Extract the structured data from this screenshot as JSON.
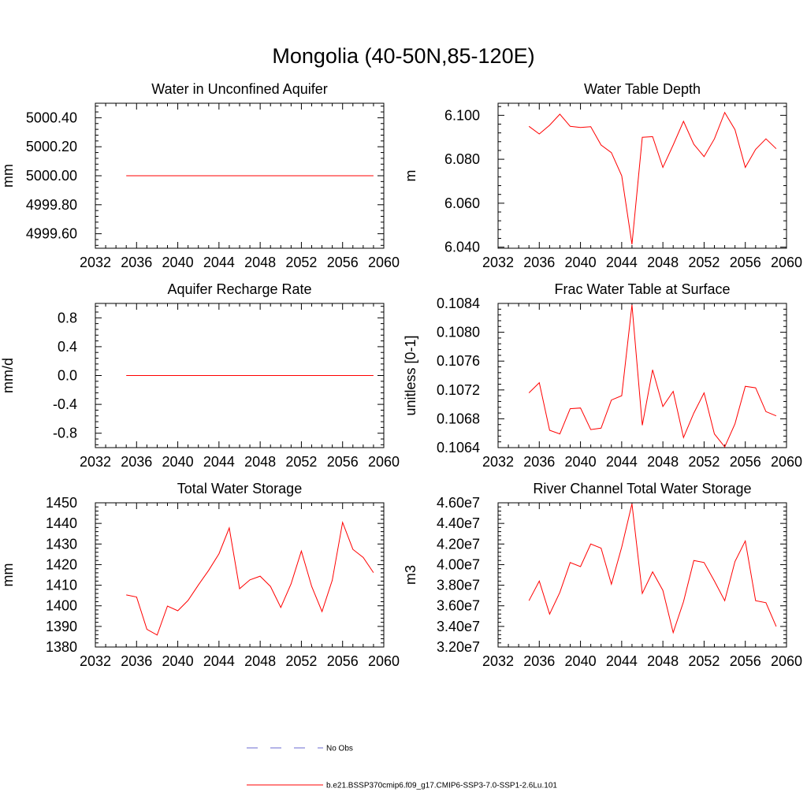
{
  "title": "Mongolia (40-50N,85-120E)",
  "legend": {
    "items": [
      {
        "label": "No Obs",
        "style": "dashed",
        "color": "#6a6ad0"
      },
      {
        "label": "b.e21.BSSP370cmip6.f09_g17.CMIP6-SSP3-7.0-SSP1-2.6Lu.101",
        "style": "solid",
        "color": "#ff0000"
      }
    ]
  },
  "chart_data": [
    {
      "type": "line",
      "title": "Water in Unconfined Aquifer",
      "ylabel": "mm",
      "xlim": [
        2032,
        2060
      ],
      "xticks": [
        2032,
        2036,
        2040,
        2044,
        2048,
        2052,
        2056,
        2060
      ],
      "ylim": [
        4999.5,
        5000.5
      ],
      "yticks": [
        4999.6,
        4999.8,
        5000.0,
        5000.2,
        5000.4
      ],
      "ytick_labels": [
        "4999.60",
        "4999.80",
        "5000.00",
        "5000.20",
        "5000.40"
      ],
      "x": [
        2035,
        2036,
        2037,
        2038,
        2039,
        2040,
        2041,
        2042,
        2043,
        2044,
        2045,
        2046,
        2047,
        2048,
        2049,
        2050,
        2051,
        2052,
        2053,
        2054,
        2055,
        2056,
        2057,
        2058,
        2059
      ],
      "series": [
        {
          "color": "#ff0000",
          "values": [
            5000,
            5000,
            5000,
            5000,
            5000,
            5000,
            5000,
            5000,
            5000,
            5000,
            5000,
            5000,
            5000,
            5000,
            5000,
            5000,
            5000,
            5000,
            5000,
            5000,
            5000,
            5000,
            5000,
            5000,
            5000
          ]
        }
      ]
    },
    {
      "type": "line",
      "title": "Water Table Depth",
      "ylabel": "m",
      "xlim": [
        2032,
        2060
      ],
      "xticks": [
        2032,
        2036,
        2040,
        2044,
        2048,
        2052,
        2056,
        2060
      ],
      "ylim": [
        6.0395,
        6.1055
      ],
      "yticks": [
        6.04,
        6.06,
        6.08,
        6.1
      ],
      "ytick_labels": [
        "6.040",
        "6.060",
        "6.080",
        "6.100"
      ],
      "x": [
        2035,
        2036,
        2037,
        2038,
        2039,
        2040,
        2041,
        2042,
        2043,
        2044,
        2045,
        2046,
        2047,
        2048,
        2049,
        2050,
        2051,
        2052,
        2053,
        2054,
        2055,
        2056,
        2057,
        2058,
        2059
      ],
      "series": [
        {
          "color": "#ff0000",
          "values": [
            6.095,
            6.0915,
            6.0955,
            6.1005,
            6.095,
            6.0945,
            6.0948,
            6.0865,
            6.083,
            6.0725,
            6.0413,
            6.09,
            6.0903,
            6.0763,
            6.0865,
            6.0973,
            6.0868,
            6.0812,
            6.0893,
            6.1013,
            6.0935,
            6.0763,
            6.0845,
            6.0893,
            6.0848
          ]
        }
      ]
    },
    {
      "type": "line",
      "title": "Aquifer Recharge Rate",
      "ylabel": "mm/d",
      "xlim": [
        2032,
        2060
      ],
      "xticks": [
        2032,
        2036,
        2040,
        2044,
        2048,
        2052,
        2056,
        2060
      ],
      "ylim": [
        -1.0,
        1.0
      ],
      "yticks": [
        -0.8,
        -0.4,
        0.0,
        0.4,
        0.8
      ],
      "ytick_labels": [
        "-0.8",
        "-0.4",
        "0.0",
        "0.4",
        "0.8"
      ],
      "x": [
        2035,
        2036,
        2037,
        2038,
        2039,
        2040,
        2041,
        2042,
        2043,
        2044,
        2045,
        2046,
        2047,
        2048,
        2049,
        2050,
        2051,
        2052,
        2053,
        2054,
        2055,
        2056,
        2057,
        2058,
        2059
      ],
      "series": [
        {
          "color": "#ff0000",
          "values": [
            0,
            0,
            0,
            0,
            0,
            0,
            0,
            0,
            0,
            0,
            0,
            0,
            0,
            0,
            0,
            0,
            0,
            0,
            0,
            0,
            0,
            0,
            0,
            0,
            0
          ]
        }
      ]
    },
    {
      "type": "line",
      "title": "Frac Water Table at Surface",
      "ylabel": "unitless [0-1]",
      "xlim": [
        2032,
        2060
      ],
      "xticks": [
        2032,
        2036,
        2040,
        2044,
        2048,
        2052,
        2056,
        2060
      ],
      "ylim": [
        0.1064,
        0.1084
      ],
      "yticks": [
        0.1064,
        0.1068,
        0.1072,
        0.1076,
        0.108,
        0.1084
      ],
      "ytick_labels": [
        "0.1064",
        "0.1068",
        "0.1072",
        "0.1076",
        "0.1080",
        "0.1084"
      ],
      "x": [
        2035,
        2036,
        2037,
        2038,
        2039,
        2040,
        2041,
        2042,
        2043,
        2044,
        2045,
        2046,
        2047,
        2048,
        2049,
        2050,
        2051,
        2052,
        2053,
        2054,
        2055,
        2056,
        2057,
        2058,
        2059
      ],
      "series": [
        {
          "color": "#ff0000",
          "values": [
            0.10716,
            0.1073,
            0.10664,
            0.10659,
            0.10694,
            0.10695,
            0.10665,
            0.10667,
            0.10706,
            0.10712,
            0.10838,
            0.10671,
            0.10748,
            0.10697,
            0.10718,
            0.10654,
            0.10688,
            0.10716,
            0.10659,
            0.10641,
            0.10673,
            0.10725,
            0.10723,
            0.1069,
            0.10684
          ]
        }
      ]
    },
    {
      "type": "line",
      "title": "Total Water Storage",
      "ylabel": "mm",
      "xlim": [
        2032,
        2060
      ],
      "xticks": [
        2032,
        2036,
        2040,
        2044,
        2048,
        2052,
        2056,
        2060
      ],
      "ylim": [
        1380,
        1450
      ],
      "yticks": [
        1380,
        1390,
        1400,
        1410,
        1420,
        1430,
        1440,
        1450
      ],
      "ytick_labels": [
        "1380",
        "1390",
        "1400",
        "1410",
        "1420",
        "1430",
        "1440",
        "1450"
      ],
      "x": [
        2035,
        2036,
        2037,
        2038,
        2039,
        2040,
        2041,
        2042,
        2043,
        2044,
        2045,
        2046,
        2047,
        2048,
        2049,
        2050,
        2051,
        2052,
        2053,
        2054,
        2055,
        2056,
        2057,
        2058,
        2059
      ],
      "series": [
        {
          "color": "#ff0000",
          "values": [
            1405.3,
            1404.3,
            1388.6,
            1385.8,
            1399.9,
            1397.6,
            1402.6,
            1410.1,
            1417.2,
            1425.3,
            1437.8,
            1408.3,
            1412.6,
            1414.4,
            1409.4,
            1399.2,
            1410.7,
            1426.6,
            1409.4,
            1397.2,
            1412.4,
            1440.5,
            1427.4,
            1423.5,
            1416.1
          ]
        }
      ]
    },
    {
      "type": "line",
      "title": "River Channel Total Water Storage",
      "ylabel": "m3",
      "xlim": [
        2032,
        2060
      ],
      "xticks": [
        2032,
        2036,
        2040,
        2044,
        2048,
        2052,
        2056,
        2060
      ],
      "ylim": [
        32000000,
        46000000
      ],
      "yticks": [
        32000000,
        34000000,
        36000000,
        38000000,
        40000000,
        42000000,
        44000000,
        46000000
      ],
      "ytick_labels": [
        "3.20e7",
        "3.40e7",
        "3.60e7",
        "3.80e7",
        "4.00e7",
        "4.20e7",
        "4.40e7",
        "4.60e7"
      ],
      "x": [
        2035,
        2036,
        2037,
        2038,
        2039,
        2040,
        2041,
        2042,
        2043,
        2044,
        2045,
        2046,
        2047,
        2048,
        2049,
        2050,
        2051,
        2052,
        2053,
        2054,
        2055,
        2056,
        2057,
        2058,
        2059
      ],
      "series": [
        {
          "color": "#ff0000",
          "values": [
            36500000,
            38400000,
            35200000,
            37300000,
            40200000,
            39800000,
            42000000,
            41600000,
            38100000,
            41700000,
            45900000,
            37200000,
            39300000,
            37500000,
            33400000,
            36400000,
            40400000,
            40200000,
            38400000,
            36500000,
            40300000,
            42300000,
            36500000,
            36300000,
            34000000
          ]
        }
      ]
    }
  ]
}
